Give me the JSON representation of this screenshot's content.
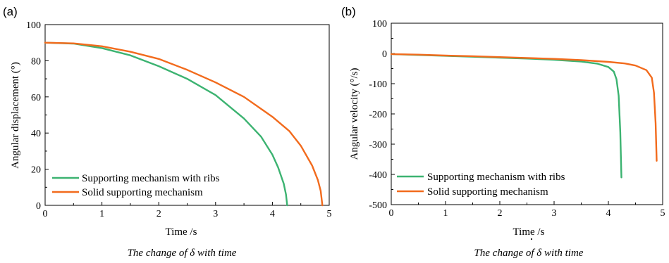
{
  "colors": {
    "ribs": "#3cb371",
    "solid": "#f26b1d",
    "axis": "#000000"
  },
  "panels": [
    {
      "letter": "(a)",
      "caption": "The change of δ with time",
      "legend": [
        "Supporting mechanism with ribs",
        "Solid supporting mechanism"
      ],
      "xticks": [
        "0",
        "1",
        "2",
        "3",
        "4",
        "5"
      ],
      "yticks": [
        "0",
        "20",
        "40",
        "60",
        "80",
        "100"
      ]
    },
    {
      "letter": "(b)",
      "caption_pre": "The change of ",
      "caption_sym": "δ",
      "caption_dot": "·",
      "caption_post": " with time",
      "legend": [
        "Supporting mechanism with ribs",
        "Solid supporting mechanism"
      ],
      "xticks": [
        "0",
        "1",
        "2",
        "3",
        "4",
        "5"
      ],
      "yticks": [
        "100",
        "0",
        "-100",
        "-200",
        "-300",
        "-400",
        "-500"
      ]
    }
  ],
  "chart_data": [
    {
      "type": "line",
      "xlabel": "Time /s",
      "ylabel": "Angular displacement (°)",
      "xlim": [
        0,
        5
      ],
      "ylim": [
        0,
        100
      ],
      "series": [
        {
          "name": "Supporting mechanism with ribs",
          "x": [
            0,
            0.5,
            1.0,
            1.5,
            2.0,
            2.5,
            3.0,
            3.5,
            3.8,
            4.0,
            4.1,
            4.2,
            4.24,
            4.26
          ],
          "y": [
            90,
            89.5,
            87,
            83,
            77,
            70,
            61,
            48,
            38,
            28,
            21,
            12,
            6,
            0
          ]
        },
        {
          "name": "Solid supporting mechanism",
          "x": [
            0,
            0.5,
            1.0,
            1.5,
            2.0,
            2.5,
            3.0,
            3.5,
            4.0,
            4.3,
            4.5,
            4.7,
            4.8,
            4.85,
            4.88
          ],
          "y": [
            90,
            89.6,
            88,
            85,
            81,
            75,
            68,
            60,
            49,
            41,
            33,
            22,
            14,
            8,
            0
          ]
        }
      ]
    },
    {
      "type": "line",
      "xlabel": "Time /s",
      "ylabel": "Angular velocity (°/s)",
      "xlim": [
        0,
        5
      ],
      "ylim": [
        -500,
        100
      ],
      "series": [
        {
          "name": "Supporting mechanism with ribs",
          "x": [
            0,
            0.5,
            1.0,
            1.5,
            2.0,
            2.5,
            3.0,
            3.5,
            3.8,
            4.0,
            4.1,
            4.15,
            4.19,
            4.22,
            4.24
          ],
          "y": [
            -2,
            -5,
            -8,
            -11,
            -14,
            -17,
            -21,
            -27,
            -34,
            -45,
            -60,
            -85,
            -140,
            -260,
            -410
          ]
        },
        {
          "name": "Solid supporting mechanism",
          "x": [
            0,
            0.5,
            1.0,
            1.5,
            2.0,
            2.5,
            3.0,
            3.5,
            4.0,
            4.3,
            4.5,
            4.7,
            4.8,
            4.84,
            4.87,
            4.89
          ],
          "y": [
            -2,
            -4,
            -7,
            -9,
            -12,
            -15,
            -18,
            -22,
            -28,
            -33,
            -40,
            -55,
            -80,
            -130,
            -230,
            -355
          ]
        }
      ]
    }
  ]
}
